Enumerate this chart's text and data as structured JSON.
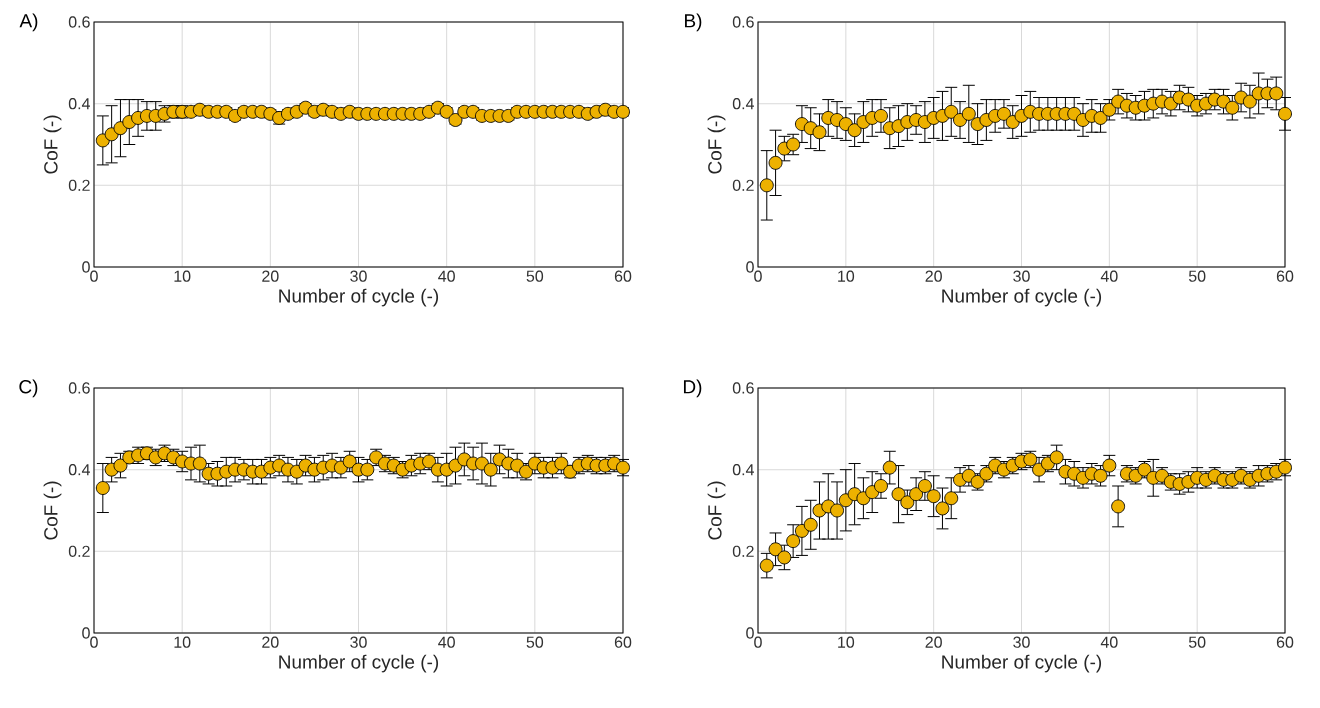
{
  "chart_data": [
    {
      "type": "scatter",
      "title": "A)",
      "xlabel": "Number of cycle (-)",
      "ylabel": "CoF (-)",
      "xlim": [
        0,
        60
      ],
      "ylim": [
        0,
        0.6
      ],
      "xticks": [
        0,
        10,
        20,
        30,
        40,
        50,
        60
      ],
      "yticks": [
        0,
        0.2,
        0.4,
        0.6
      ],
      "grid": true,
      "marker": "circle",
      "x": [
        1,
        2,
        3,
        4,
        5,
        6,
        7,
        8,
        9,
        10,
        11,
        12,
        13,
        14,
        15,
        16,
        17,
        18,
        19,
        20,
        21,
        22,
        23,
        24,
        25,
        26,
        27,
        28,
        29,
        30,
        31,
        32,
        33,
        34,
        35,
        36,
        37,
        38,
        39,
        40,
        41,
        42,
        43,
        44,
        45,
        46,
        47,
        48,
        49,
        50,
        51,
        52,
        53,
        54,
        55,
        56,
        57,
        58,
        59,
        60
      ],
      "series": [
        {
          "color": "#edb100",
          "values": [
            0.31,
            0.325,
            0.34,
            0.355,
            0.365,
            0.37,
            0.37,
            0.375,
            0.38,
            0.38,
            0.38,
            0.385,
            0.38,
            0.38,
            0.38,
            0.37,
            0.38,
            0.38,
            0.38,
            0.375,
            0.365,
            0.375,
            0.38,
            0.39,
            0.38,
            0.385,
            0.38,
            0.375,
            0.38,
            0.375,
            0.375,
            0.375,
            0.375,
            0.375,
            0.375,
            0.375,
            0.375,
            0.38,
            0.39,
            0.38,
            0.36,
            0.38,
            0.38,
            0.37,
            0.37,
            0.37,
            0.37,
            0.38,
            0.38,
            0.38,
            0.38,
            0.38,
            0.38,
            0.38,
            0.38,
            0.375,
            0.38,
            0.385,
            0.38,
            0.38
          ],
          "errors": [
            0.06,
            0.07,
            0.07,
            0.055,
            0.045,
            0.035,
            0.035,
            0.02,
            0.015,
            0.015,
            0.01,
            0.01,
            0.01,
            0.01,
            0.01,
            0.01,
            0.01,
            0.01,
            0.01,
            0.01,
            0.015,
            0.01,
            0.01,
            0.01,
            0.01,
            0.01,
            0.01,
            0.01,
            0.01,
            0.01,
            0.01,
            0.01,
            0.01,
            0.01,
            0.01,
            0.01,
            0.01,
            0.01,
            0.01,
            0.01,
            0.01,
            0.01,
            0.01,
            0.01,
            0.01,
            0.01,
            0.01,
            0.01,
            0.01,
            0.01,
            0.01,
            0.01,
            0.01,
            0.01,
            0.01,
            0.01,
            0.01,
            0.01,
            0.01,
            0.01
          ]
        }
      ]
    },
    {
      "type": "scatter",
      "title": "B)",
      "xlabel": "Number of cycle (-)",
      "ylabel": "CoF (-)",
      "xlim": [
        0,
        60
      ],
      "ylim": [
        0,
        0.6
      ],
      "xticks": [
        0,
        10,
        20,
        30,
        40,
        50,
        60
      ],
      "yticks": [
        0,
        0.2,
        0.4,
        0.6
      ],
      "grid": true,
      "marker": "circle",
      "x": [
        1,
        2,
        3,
        4,
        5,
        6,
        7,
        8,
        9,
        10,
        11,
        12,
        13,
        14,
        15,
        16,
        17,
        18,
        19,
        20,
        21,
        22,
        23,
        24,
        25,
        26,
        27,
        28,
        29,
        30,
        31,
        32,
        33,
        34,
        35,
        36,
        37,
        38,
        39,
        40,
        41,
        42,
        43,
        44,
        45,
        46,
        47,
        48,
        49,
        50,
        51,
        52,
        53,
        54,
        55,
        56,
        57,
        58,
        59,
        60
      ],
      "series": [
        {
          "color": "#edb100",
          "values": [
            0.2,
            0.255,
            0.29,
            0.3,
            0.35,
            0.34,
            0.33,
            0.365,
            0.36,
            0.35,
            0.335,
            0.355,
            0.365,
            0.37,
            0.34,
            0.345,
            0.355,
            0.36,
            0.355,
            0.365,
            0.37,
            0.38,
            0.36,
            0.375,
            0.35,
            0.36,
            0.37,
            0.375,
            0.355,
            0.37,
            0.38,
            0.375,
            0.375,
            0.375,
            0.375,
            0.375,
            0.36,
            0.37,
            0.365,
            0.385,
            0.405,
            0.395,
            0.39,
            0.395,
            0.4,
            0.405,
            0.4,
            0.415,
            0.41,
            0.395,
            0.4,
            0.41,
            0.405,
            0.39,
            0.415,
            0.405,
            0.425,
            0.425,
            0.425,
            0.375
          ],
          "errors": [
            0.085,
            0.08,
            0.03,
            0.025,
            0.045,
            0.05,
            0.045,
            0.045,
            0.045,
            0.04,
            0.04,
            0.05,
            0.045,
            0.04,
            0.05,
            0.05,
            0.045,
            0.035,
            0.05,
            0.05,
            0.06,
            0.06,
            0.045,
            0.07,
            0.05,
            0.05,
            0.04,
            0.035,
            0.04,
            0.05,
            0.05,
            0.04,
            0.04,
            0.04,
            0.04,
            0.04,
            0.04,
            0.04,
            0.035,
            0.025,
            0.03,
            0.03,
            0.03,
            0.035,
            0.035,
            0.03,
            0.03,
            0.03,
            0.03,
            0.025,
            0.025,
            0.025,
            0.03,
            0.03,
            0.035,
            0.04,
            0.05,
            0.035,
            0.04,
            0.04
          ]
        }
      ]
    },
    {
      "type": "scatter",
      "title": "C)",
      "xlabel": "Number of cycle (-)",
      "ylabel": "CoF (-)",
      "xlim": [
        0,
        60
      ],
      "ylim": [
        0,
        0.6
      ],
      "xticks": [
        0,
        10,
        20,
        30,
        40,
        50,
        60
      ],
      "yticks": [
        0,
        0.2,
        0.4,
        0.6
      ],
      "grid": true,
      "marker": "circle",
      "x": [
        1,
        2,
        3,
        4,
        5,
        6,
        7,
        8,
        9,
        10,
        11,
        12,
        13,
        14,
        15,
        16,
        17,
        18,
        19,
        20,
        21,
        22,
        23,
        24,
        25,
        26,
        27,
        28,
        29,
        30,
        31,
        32,
        33,
        34,
        35,
        36,
        37,
        38,
        39,
        40,
        41,
        42,
        43,
        44,
        45,
        46,
        47,
        48,
        49,
        50,
        51,
        52,
        53,
        54,
        55,
        56,
        57,
        58,
        59,
        60
      ],
      "series": [
        {
          "color": "#edb100",
          "values": [
            0.355,
            0.4,
            0.41,
            0.43,
            0.435,
            0.44,
            0.43,
            0.44,
            0.43,
            0.42,
            0.415,
            0.415,
            0.39,
            0.39,
            0.395,
            0.4,
            0.4,
            0.395,
            0.395,
            0.405,
            0.41,
            0.4,
            0.395,
            0.41,
            0.4,
            0.405,
            0.41,
            0.405,
            0.42,
            0.4,
            0.4,
            0.43,
            0.415,
            0.41,
            0.4,
            0.41,
            0.415,
            0.42,
            0.4,
            0.4,
            0.41,
            0.425,
            0.415,
            0.415,
            0.4,
            0.425,
            0.415,
            0.41,
            0.395,
            0.415,
            0.405,
            0.405,
            0.415,
            0.395,
            0.41,
            0.415,
            0.41,
            0.41,
            0.415,
            0.405
          ],
          "errors": [
            0.06,
            0.03,
            0.03,
            0.015,
            0.02,
            0.015,
            0.02,
            0.02,
            0.02,
            0.025,
            0.04,
            0.045,
            0.025,
            0.03,
            0.035,
            0.03,
            0.025,
            0.03,
            0.03,
            0.025,
            0.025,
            0.03,
            0.03,
            0.025,
            0.03,
            0.03,
            0.03,
            0.025,
            0.025,
            0.03,
            0.025,
            0.02,
            0.02,
            0.02,
            0.02,
            0.025,
            0.025,
            0.02,
            0.03,
            0.04,
            0.045,
            0.04,
            0.04,
            0.05,
            0.04,
            0.035,
            0.035,
            0.03,
            0.02,
            0.025,
            0.025,
            0.025,
            0.025,
            0.015,
            0.02,
            0.02,
            0.02,
            0.02,
            0.02,
            0.02
          ]
        }
      ]
    },
    {
      "type": "scatter",
      "title": "D)",
      "xlabel": "Number of cycle (-)",
      "ylabel": "CoF (-)",
      "xlim": [
        0,
        60
      ],
      "ylim": [
        0,
        0.6
      ],
      "xticks": [
        0,
        10,
        20,
        30,
        40,
        50,
        60
      ],
      "yticks": [
        0,
        0.2,
        0.4,
        0.6
      ],
      "grid": true,
      "marker": "circle",
      "x": [
        1,
        2,
        3,
        4,
        5,
        6,
        7,
        8,
        9,
        10,
        11,
        12,
        13,
        14,
        15,
        16,
        17,
        18,
        19,
        20,
        21,
        22,
        23,
        24,
        25,
        26,
        27,
        28,
        29,
        30,
        31,
        32,
        33,
        34,
        35,
        36,
        37,
        38,
        39,
        40,
        41,
        42,
        43,
        44,
        45,
        46,
        47,
        48,
        49,
        50,
        51,
        52,
        53,
        54,
        55,
        56,
        57,
        58,
        59,
        60
      ],
      "series": [
        {
          "color": "#edb100",
          "values": [
            0.165,
            0.205,
            0.185,
            0.225,
            0.25,
            0.265,
            0.3,
            0.31,
            0.3,
            0.325,
            0.34,
            0.33,
            0.345,
            0.36,
            0.405,
            0.34,
            0.32,
            0.34,
            0.36,
            0.335,
            0.305,
            0.33,
            0.375,
            0.385,
            0.37,
            0.39,
            0.41,
            0.4,
            0.41,
            0.42,
            0.425,
            0.4,
            0.415,
            0.43,
            0.395,
            0.39,
            0.38,
            0.39,
            0.385,
            0.41,
            0.31,
            0.39,
            0.385,
            0.4,
            0.38,
            0.385,
            0.37,
            0.365,
            0.37,
            0.38,
            0.375,
            0.385,
            0.375,
            0.375,
            0.385,
            0.375,
            0.385,
            0.39,
            0.395,
            0.405
          ],
          "errors": [
            0.03,
            0.04,
            0.03,
            0.04,
            0.06,
            0.06,
            0.07,
            0.08,
            0.07,
            0.075,
            0.075,
            0.05,
            0.05,
            0.03,
            0.04,
            0.07,
            0.03,
            0.04,
            0.035,
            0.05,
            0.05,
            0.05,
            0.03,
            0.025,
            0.02,
            0.02,
            0.02,
            0.02,
            0.02,
            0.02,
            0.02,
            0.03,
            0.02,
            0.03,
            0.03,
            0.03,
            0.025,
            0.025,
            0.025,
            0.025,
            0.05,
            0.02,
            0.02,
            0.02,
            0.045,
            0.02,
            0.02,
            0.025,
            0.025,
            0.025,
            0.02,
            0.02,
            0.02,
            0.02,
            0.02,
            0.02,
            0.025,
            0.02,
            0.02,
            0.02
          ]
        }
      ]
    }
  ]
}
